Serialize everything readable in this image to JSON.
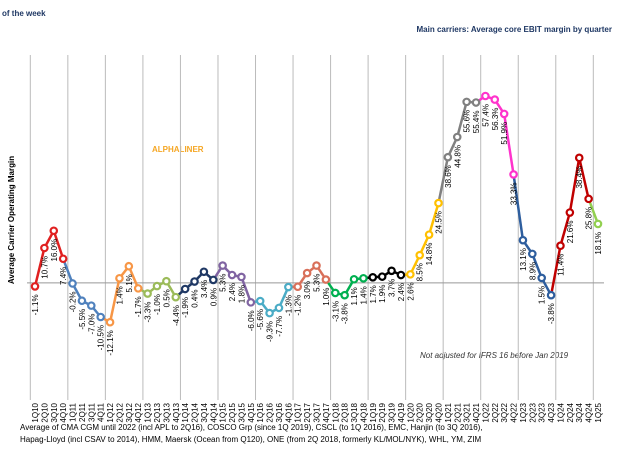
{
  "header": {
    "title": "of the week"
  },
  "chart_data": {
    "type": "line",
    "title": "Main carriers: Average core EBIT margin by quarter",
    "ylabel": "Average Carrier Operating Margin",
    "watermark": "ALPHALINER",
    "annotation": "Not adjusted for IFRS 16 before Jan 2019",
    "categories": [
      "1Q10",
      "2Q10",
      "3Q10",
      "4Q10",
      "1Q11",
      "2Q11",
      "3Q11",
      "4Q11",
      "1Q12",
      "2Q12",
      "3Q12",
      "4Q12",
      "1Q13",
      "2Q13",
      "3Q13",
      "4Q13",
      "1Q14",
      "2Q14",
      "3Q14",
      "4Q14",
      "1Q15",
      "2Q15",
      "3Q15",
      "4Q15",
      "1Q16",
      "2Q16",
      "3Q16",
      "4Q16",
      "1Q17",
      "2Q17",
      "3Q17",
      "4Q17",
      "1Q18",
      "2Q18",
      "3Q18",
      "4Q18",
      "1Q19",
      "2Q19",
      "3Q19",
      "4Q19",
      "1Q20",
      "2Q20",
      "3Q20",
      "4Q20",
      "1Q21",
      "2Q21",
      "3Q21",
      "4Q21",
      "1Q22",
      "2Q22",
      "3Q22",
      "4Q22",
      "1Q23",
      "2Q23",
      "3Q23",
      "4Q23",
      "1Q24",
      "2Q24",
      "3Q24",
      "4Q24",
      "1Q25"
    ],
    "values": [
      -1.1,
      10.7,
      16.0,
      7.4,
      -0.2,
      -5.5,
      -7.0,
      -10.5,
      -12.1,
      1.4,
      5.1,
      -1.7,
      -3.3,
      -1.0,
      0.5,
      -4.4,
      -1.9,
      0.4,
      3.4,
      0.9,
      5.3,
      2.4,
      1.8,
      -6.0,
      -5.6,
      -9.3,
      -7.7,
      -1.3,
      -1.2,
      3.0,
      5.3,
      1.0,
      -3.1,
      -3.8,
      1.1,
      1.4,
      1.7,
      1.9,
      3.7,
      2.4,
      2.6,
      8.5,
      14.8,
      24.5,
      38.6,
      44.8,
      55.6,
      55.4,
      57.4,
      56.3,
      51.9,
      33.3,
      13.1,
      8.9,
      1.5,
      -3.8,
      11.4,
      21.6,
      38.4,
      25.8,
      18.1
    ],
    "value_labels": [
      "-1.1%",
      "10.7%",
      "16.0%",
      "7.4%",
      "-0.2%",
      "-5.5%",
      "-7.0%",
      "-10.5%",
      "-12.1%",
      "1.4%",
      "5.1%",
      "-1.7%",
      "-3.3%",
      "-1.0%",
      "0.5%",
      "-4.4%",
      "-1.9%",
      "0.4%",
      "3.4%",
      "0.9%",
      "5.3%",
      "2.4%",
      "1.8%",
      "-6.0%",
      "-5.6%",
      "-9.3%",
      "-7.7%",
      "-1.3%",
      "-1.2%",
      "3.0%",
      "5.3%",
      "1.0%",
      "-3.1%",
      "-3.8%",
      "1.1%",
      "1.4%",
      "1.7%",
      "1.9%",
      "3.7%",
      "2.4%",
      "2.6%",
      "8.5%",
      "14.8%",
      "24.5%",
      "38.6%",
      "44.8%",
      "55.6%",
      "55.4%",
      "57.4%",
      "56.3%",
      "51.9%",
      "33.3%",
      "13.1%",
      "8.9%",
      "1.5%",
      "-3.8%",
      "11.4%",
      "21.6%",
      "38.4%",
      "25.8%",
      "18.1%"
    ],
    "colors": [
      "#e02020",
      "#4f81bd",
      "#f79646",
      "#9bbb59",
      "#1f3864",
      "#8064a2",
      "#4bacc6",
      "#d9705a",
      "#00b050",
      "#000000",
      "#ffc000",
      "#808080",
      "#ff33cc",
      "#2e5e9e",
      "#c00000",
      "#92d050"
    ],
    "ylim": [
      -36,
      70
    ],
    "footnote": [
      "Average of CMA CGM until 2022 (incl APL to 2Q16), COSCO Grp (since 1Q 2019), CSCL (to 1Q 2016), EMC, Hanjin (to 3Q 2016),",
      "Hapag-Lloyd (incl CSAV to 2014), HMM, Maersk (Ocean from Q120), ONE (from 2Q 2018, formerly KL/MOL/NYK), WHL, YM, ZIM"
    ]
  }
}
